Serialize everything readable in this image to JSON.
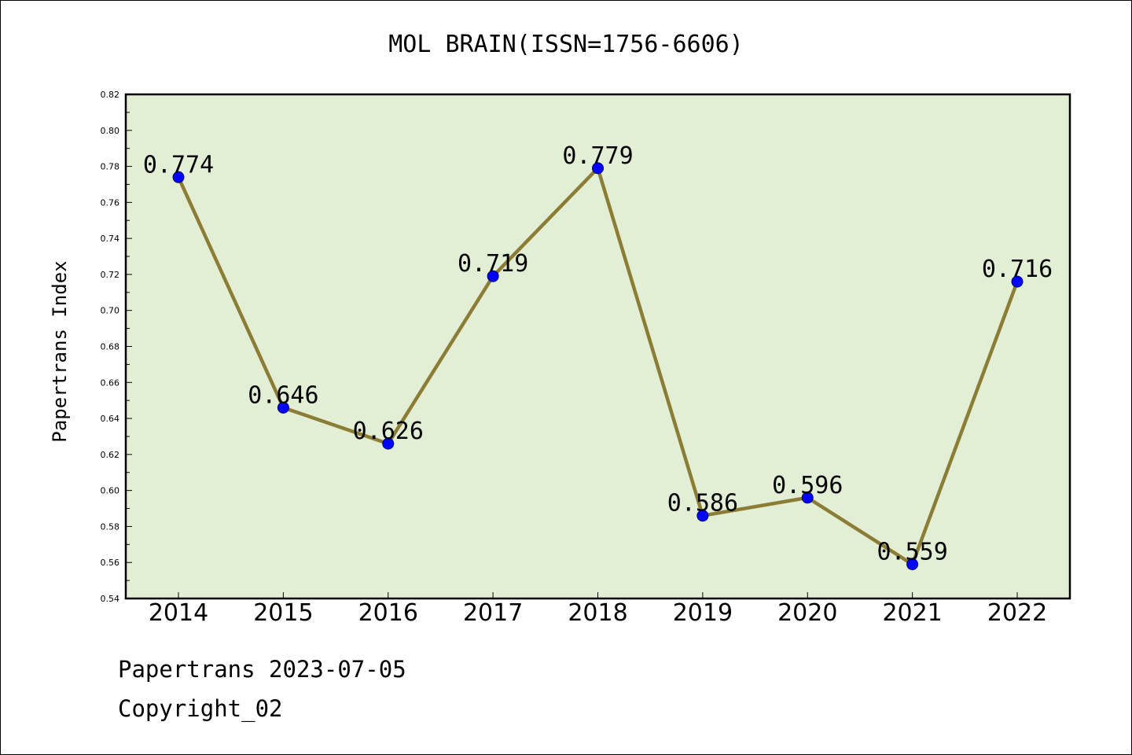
{
  "chart_data": {
    "type": "line",
    "title": "MOL BRAIN(ISSN=1756-6606)",
    "xlabel": "",
    "ylabel": "Papertrans Index",
    "categories": [
      "2014",
      "2015",
      "2016",
      "2017",
      "2018",
      "2019",
      "2020",
      "2021",
      "2022"
    ],
    "series": [
      {
        "values": [
          0.774,
          0.646,
          0.626,
          0.719,
          0.779,
          0.586,
          0.596,
          0.559,
          0.716
        ],
        "data_labels": [
          "0.774",
          "0.646",
          "0.626",
          "0.719",
          "0.779",
          "0.586",
          "0.596",
          "0.559",
          "0.716"
        ]
      }
    ],
    "ylim": [
      0.54,
      0.82
    ],
    "yticks": [
      "0.54",
      "0.56",
      "0.58",
      "0.60",
      "0.62",
      "0.64",
      "0.66",
      "0.68",
      "0.70",
      "0.72",
      "0.74",
      "0.76",
      "0.78",
      "0.80",
      "0.82"
    ],
    "grid": false,
    "legend": "none",
    "colors": {
      "plot_background": "#e2efd5",
      "line": "#8b7d35",
      "marker_fill": "#0000ff",
      "marker_edge": "#000066"
    }
  },
  "footer": {
    "line1": "Papertrans 2023-07-05",
    "line2": "Copyright_02"
  }
}
